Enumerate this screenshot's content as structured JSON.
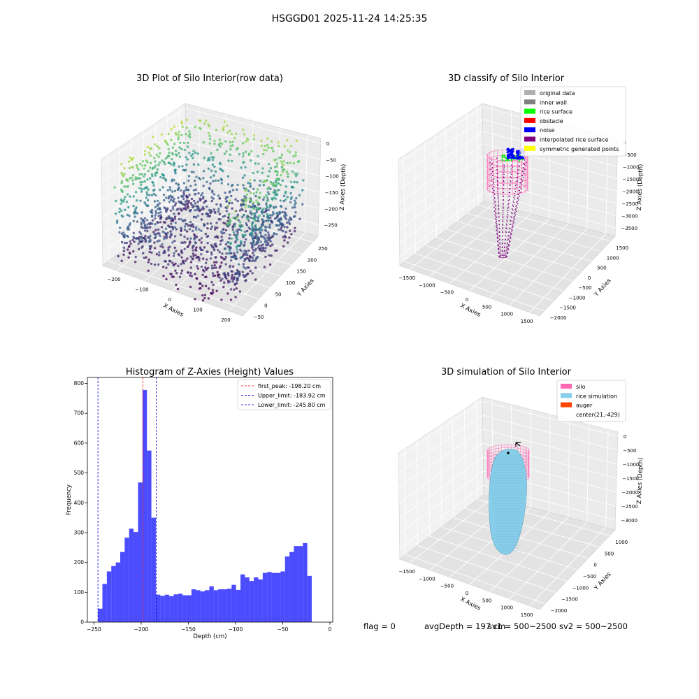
{
  "figure": {
    "suptitle": "HSGGD01 2025-11-24 14:25:35",
    "footer": {
      "flag": "flag = 0",
      "avg_depth": "avgDepth = 197 cm",
      "sv1": "sv1 = 500~2500",
      "sv2": "sv2 = 500~2500"
    }
  },
  "colors": {
    "hist_bar": "#0000ff",
    "peak_line": "#ff0000",
    "limit_line": "#0000cc",
    "original_data": "#b0b0b0",
    "inner_wall": "#808080",
    "rice_surface": "#00ff00",
    "obstacle": "#ff0000",
    "noise": "#0000ff",
    "interpolated_rice_surface": "#800080",
    "symmetric_generated_points": "#ffff00",
    "silo": "#ff69b4",
    "rice_simulation": "#87ceeb",
    "auger": "#ff4500",
    "viridis": [
      "#440154",
      "#3b528b",
      "#21918c",
      "#5ec962",
      "#fde725"
    ]
  },
  "chart_data": [
    {
      "type": "scatter",
      "projection": "3d",
      "title": "3D Plot of Silo Interior(row data)",
      "xlabel": "X Axies",
      "ylabel": "Y Axies",
      "zlabel": "Z Axies (Depth)",
      "xticks": [
        "−200",
        "−100",
        "0",
        "100",
        "200"
      ],
      "yticks": [
        "−50",
        "0",
        "50",
        "100",
        "150",
        "200",
        "250"
      ],
      "zticks": [
        "0",
        "−50",
        "−100",
        "−150",
        "−200",
        "−250"
      ],
      "xlim": [
        -240,
        240
      ],
      "ylim": [
        -60,
        260
      ],
      "zlim": [
        -270,
        0
      ],
      "colormap": "viridis",
      "grid": true
    },
    {
      "type": "scatter",
      "projection": "3d",
      "title": "3D classify of Silo Interior",
      "xlabel": "X Axies",
      "ylabel": "Y Axies",
      "zlabel": "Z Axies (Depth)",
      "xticks": [
        "−1500",
        "−1000",
        "−500",
        "0",
        "500",
        "1000",
        "1500"
      ],
      "yticks": [
        "−2000",
        "−1500",
        "−1000",
        "−500",
        "0",
        "500",
        "1000",
        "1500"
      ],
      "zticks": [
        "0",
        "−500",
        "−1000",
        "−1500",
        "−2000",
        "−2500",
        "−3000",
        "−3500"
      ],
      "legend": [
        {
          "label": "original data",
          "color": "#b0b0b0"
        },
        {
          "label": "inner wall",
          "color": "#808080"
        },
        {
          "label": "rice surface",
          "color": "#00ff00"
        },
        {
          "label": "obstacle",
          "color": "#ff0000"
        },
        {
          "label": "noise",
          "color": "#0000ff"
        },
        {
          "label": "interpolated rice surface",
          "color": "#800080"
        },
        {
          "label": "symmetric generated points",
          "color": "#ffff00"
        }
      ],
      "legend_position": "top-right",
      "grid": true
    },
    {
      "type": "bar",
      "title": "Histogram of Z-Axies (Height) Values",
      "xlabel": "Depth (cm)",
      "ylabel": "Frequency",
      "xlim": [
        -257,
        3
      ],
      "ylim": [
        0,
        820
      ],
      "xticks": [
        -250,
        -200,
        -150,
        -100,
        -50,
        0
      ],
      "yticks": [
        0,
        100,
        200,
        300,
        400,
        500,
        600,
        700,
        800
      ],
      "bin_start": -245.8,
      "bin_width": 4.72,
      "values": [
        45,
        128,
        170,
        188,
        200,
        235,
        283,
        313,
        302,
        468,
        778,
        575,
        350,
        92,
        88,
        92,
        87,
        93,
        95,
        90,
        90,
        110,
        107,
        103,
        107,
        120,
        107,
        110,
        110,
        112,
        125,
        108,
        160,
        150,
        138,
        150,
        143,
        165,
        168,
        165,
        165,
        170,
        220,
        235,
        255,
        255,
        265,
        155
      ],
      "vlines": [
        {
          "label": "first_peak: -198.20 cm",
          "x": -198.2,
          "color": "#ff0000"
        },
        {
          "label": "Upper_limit: -183.92 cm",
          "x": -183.92,
          "color": "#0000cc"
        },
        {
          "label": "Lower_limit: -245.80 cm",
          "x": -245.8,
          "color": "#0000cc"
        }
      ],
      "legend_position": "top-right",
      "grid": false
    },
    {
      "type": "scatter",
      "projection": "3d",
      "title": "3D simulation of Silo Interior",
      "xlabel": "X Axies",
      "ylabel": "Y Axies",
      "zlabel": "Z Axies (Depth)",
      "xticks": [
        "−1500",
        "−1000",
        "−500",
        "0",
        "500",
        "1000",
        "1500"
      ],
      "yticks": [
        "−2000",
        "−1500",
        "−1000",
        "−500",
        "0",
        "500",
        "1000"
      ],
      "zticks": [
        "0",
        "−500",
        "−1000",
        "−1500",
        "−2000",
        "−2500",
        "−3000"
      ],
      "legend": [
        {
          "label": "silo",
          "color": "#ff69b4"
        },
        {
          "label": "rice simulation",
          "color": "#87ceeb"
        },
        {
          "label": "auger",
          "color": "#ff4500"
        },
        {
          "label": "center(21,-429)",
          "color": ""
        }
      ],
      "legend_position": "top-right",
      "grid": true
    }
  ]
}
